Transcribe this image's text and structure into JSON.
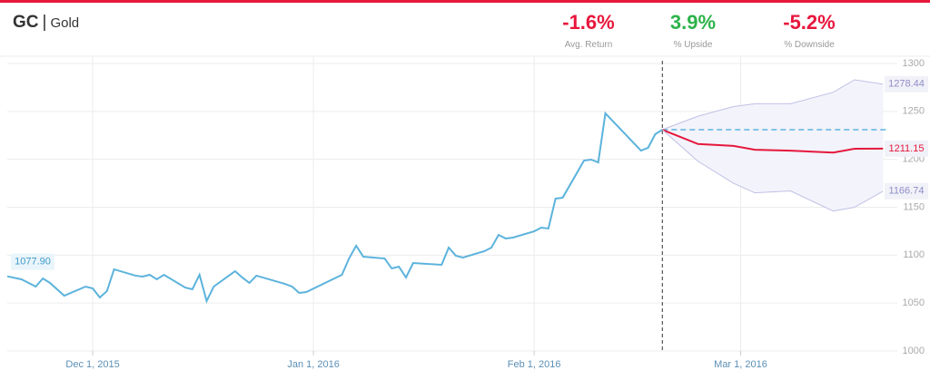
{
  "header": {
    "symbol": "GC",
    "name": "Gold",
    "stats": [
      {
        "value": "-1.6%",
        "label": "Avg. Return",
        "color": "#e8173c"
      },
      {
        "value": "3.9%",
        "label": "% Upside",
        "color": "#2db34a"
      },
      {
        "value": "-5.2%",
        "label": "% Downside",
        "color": "#e8173c"
      }
    ]
  },
  "chart_data": {
    "type": "line",
    "xlim": [
      "2015-11-19",
      "2016-03-23"
    ],
    "xticks": [
      {
        "value": "2015-12-01",
        "label": "Dec 1, 2015"
      },
      {
        "value": "2016-01-01",
        "label": "Jan 1, 2016"
      },
      {
        "value": "2016-02-01",
        "label": "Feb 1, 2016"
      },
      {
        "value": "2016-03-01",
        "label": "Mar 1, 2016"
      }
    ],
    "ylim": [
      1000,
      1300
    ],
    "yticks": [
      1000,
      1050,
      1100,
      1150,
      1200,
      1250,
      1300
    ],
    "grid": true,
    "series": [
      {
        "color": "#5cb3dc",
        "x": [
          "2015-11-19",
          "2015-11-21",
          "2015-11-23",
          "2015-11-24",
          "2015-11-25",
          "2015-11-27",
          "2015-11-30",
          "2015-12-01",
          "2015-12-02",
          "2015-12-03",
          "2015-12-04",
          "2015-12-07",
          "2015-12-08",
          "2015-12-09",
          "2015-12-10",
          "2015-12-11",
          "2015-12-14",
          "2015-12-15",
          "2015-12-16",
          "2015-12-17",
          "2015-12-18",
          "2015-12-21",
          "2015-12-22",
          "2015-12-23",
          "2015-12-24",
          "2015-12-28",
          "2015-12-29",
          "2015-12-30",
          "2015-12-31",
          "2016-01-05",
          "2016-01-06",
          "2016-01-07",
          "2016-01-08",
          "2016-01-11",
          "2016-01-12",
          "2016-01-13",
          "2016-01-14",
          "2016-01-15",
          "2016-01-19",
          "2016-01-20",
          "2016-01-21",
          "2016-01-22",
          "2016-01-25",
          "2016-01-26",
          "2016-01-27",
          "2016-01-28",
          "2016-01-29",
          "2016-02-01",
          "2016-02-02",
          "2016-02-03",
          "2016-02-04",
          "2016-02-05",
          "2016-02-08",
          "2016-02-09",
          "2016-02-10",
          "2016-02-11",
          "2016-02-16",
          "2016-02-17",
          "2016-02-18",
          "2016-02-19"
        ],
        "values": [
          1077.9,
          1074.8,
          1067.2,
          1075.7,
          1071.0,
          1057.7,
          1067.2,
          1065.3,
          1055.8,
          1062.5,
          1085.2,
          1078.6,
          1077.6,
          1079.5,
          1074.8,
          1079.5,
          1066.2,
          1064.4,
          1079.5,
          1052.1,
          1067.2,
          1083.3,
          1076.7,
          1071.0,
          1078.6,
          1070.0,
          1067.2,
          1060.6,
          1061.5,
          1079.5,
          1096.5,
          1109.8,
          1098.4,
          1096.5,
          1086.1,
          1088.0,
          1076.7,
          1091.8,
          1089.9,
          1107.9,
          1099.4,
          1097.5,
          1104.1,
          1107.9,
          1121.1,
          1117.4,
          1118.3,
          1124.9,
          1128.7,
          1127.8,
          1159.0,
          1159.9,
          1198.7,
          1199.7,
          1196.8,
          1248.0,
          1209.1,
          1212.0,
          1226.2,
          1230.9
        ],
        "value_labels": [
          "1077.90",
          null,
          null,
          null,
          null,
          null,
          null,
          null,
          null,
          null,
          null,
          null,
          null,
          null,
          null,
          null,
          null,
          null,
          null,
          null,
          null,
          null,
          null,
          null,
          null,
          null,
          null,
          null,
          null,
          null,
          null,
          null,
          null,
          null,
          null,
          null,
          null,
          null,
          null,
          null,
          null,
          null,
          null,
          null,
          null,
          null,
          null,
          null,
          null,
          null,
          null,
          null,
          null,
          null,
          null,
          null,
          null,
          null,
          null,
          null
        ]
      },
      {
        "color": "#c0c0e6",
        "x": [
          "2016-02-19",
          "2016-02-24",
          "2016-02-29",
          "2016-03-03",
          "2016-03-08",
          "2016-03-14",
          "2016-03-17",
          "2016-03-21"
        ],
        "values": [
          1230.9,
          1245,
          1255,
          1258,
          1258,
          1270,
          1283,
          1278.44
        ],
        "value_labels": [
          null,
          null,
          null,
          null,
          null,
          null,
          null,
          "1278.44"
        ]
      },
      {
        "color": "#e5183c",
        "x": [
          "2016-02-19",
          "2016-02-24",
          "2016-02-29",
          "2016-03-03",
          "2016-03-08",
          "2016-03-14",
          "2016-03-17",
          "2016-03-21"
        ],
        "values": [
          1230.9,
          1216,
          1214,
          1210,
          1209,
          1207,
          1211,
          1211.15
        ],
        "value_labels": [
          null,
          null,
          null,
          null,
          null,
          null,
          null,
          "1211.15"
        ]
      },
      {
        "color": "#c0c0e6",
        "x": [
          "2016-02-19",
          "2016-02-24",
          "2016-02-29",
          "2016-03-03",
          "2016-03-08",
          "2016-03-14",
          "2016-03-17",
          "2016-03-21"
        ],
        "values": [
          1230.9,
          1198,
          1175,
          1165,
          1167,
          1146,
          1150,
          1166.74
        ],
        "value_labels": [
          null,
          null,
          null,
          null,
          null,
          null,
          null,
          "1166.74"
        ]
      }
    ]
  }
}
